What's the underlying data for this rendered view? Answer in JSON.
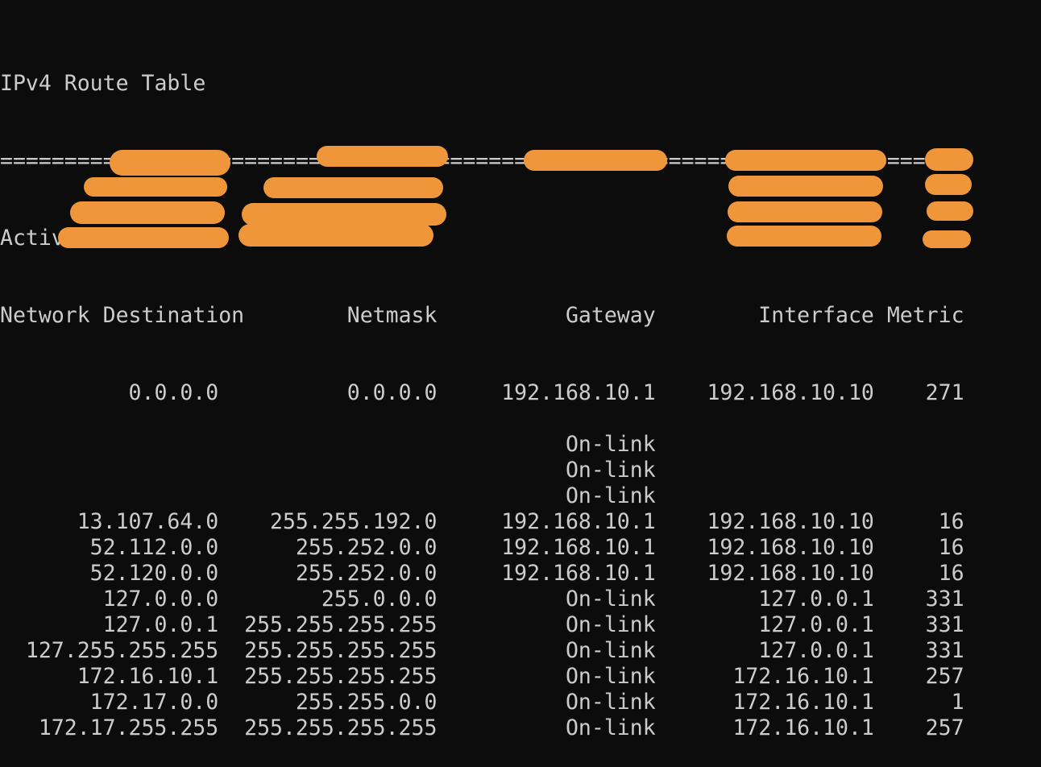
{
  "title": "IPv4 Route Table",
  "separator": "===========================================================================",
  "section": "Active Routes:",
  "headers": [
    "Network Destination",
    "Netmask",
    "Gateway",
    "Interface",
    "Metric"
  ],
  "redaction_color": "#f0963a",
  "rows": [
    [
      "0.0.0.0",
      "0.0.0.0",
      "192.168.10.1",
      "192.168.10.10",
      "271"
    ],
    [
      "",
      "",
      "",
      "",
      ""
    ],
    [
      "",
      "",
      "On-link",
      "",
      ""
    ],
    [
      "",
      "",
      "On-link",
      "",
      ""
    ],
    [
      "",
      "",
      "On-link",
      "",
      ""
    ],
    [
      "13.107.64.0",
      "255.255.192.0",
      "192.168.10.1",
      "192.168.10.10",
      "16"
    ],
    [
      "52.112.0.0",
      "255.252.0.0",
      "192.168.10.1",
      "192.168.10.10",
      "16"
    ],
    [
      "52.120.0.0",
      "255.252.0.0",
      "192.168.10.1",
      "192.168.10.10",
      "16"
    ],
    [
      "127.0.0.0",
      "255.0.0.0",
      "On-link",
      "127.0.0.1",
      "331"
    ],
    [
      "127.0.0.1",
      "255.255.255.255",
      "On-link",
      "127.0.0.1",
      "331"
    ],
    [
      "127.255.255.255",
      "255.255.255.255",
      "On-link",
      "127.0.0.1",
      "331"
    ],
    [
      "172.16.10.1",
      "255.255.255.255",
      "On-link",
      "172.16.10.1",
      "257"
    ],
    [
      "172.17.0.0",
      "255.255.0.0",
      "On-link",
      "172.16.10.1",
      "1"
    ],
    [
      "172.17.255.255",
      "255.255.255.255",
      "On-link",
      "172.16.10.1",
      "257"
    ]
  ]
}
